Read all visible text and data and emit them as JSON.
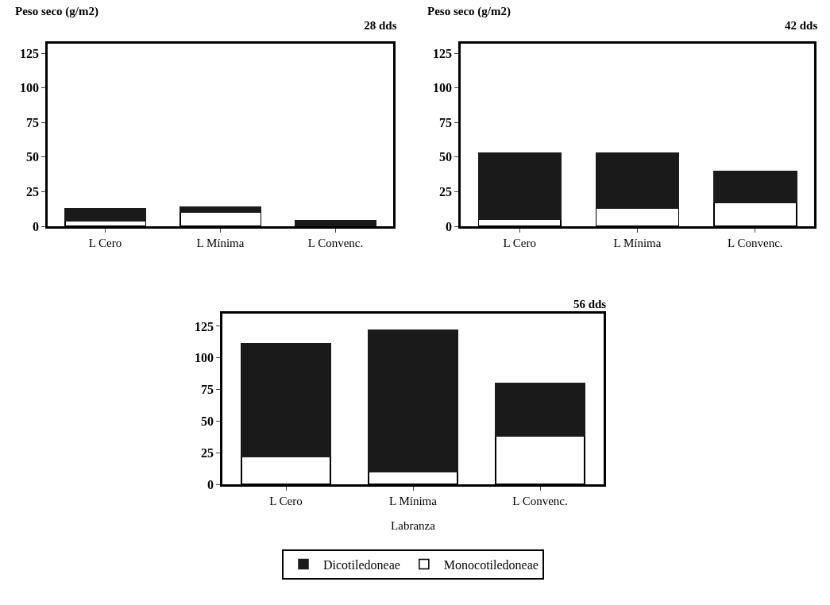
{
  "chart_data": [
    {
      "type": "bar",
      "title": "28 dds",
      "ylabel": "Peso seco (g/m2)",
      "stacked": true,
      "categories": [
        "L Cero",
        "L Mínima",
        "L Convenc."
      ],
      "ylim": [
        0,
        132
      ],
      "yticks": [
        0,
        25,
        50,
        75,
        100,
        125
      ],
      "series": [
        {
          "color": "#ffffff",
          "values": [
            4,
            10,
            null
          ]
        },
        {
          "color": "#1a1a1a",
          "values": [
            9,
            4,
            4
          ]
        }
      ]
    },
    {
      "type": "bar",
      "title": "42 dds",
      "ylabel": "Peso seco (g/m2)",
      "stacked": true,
      "categories": [
        "L Cero",
        "L Mínima",
        "L Convenc."
      ],
      "ylim": [
        0,
        132
      ],
      "yticks": [
        0,
        25,
        50,
        75,
        100,
        125
      ],
      "series": [
        {
          "color": "#ffffff",
          "values": [
            5,
            13,
            17
          ]
        },
        {
          "color": "#1a1a1a",
          "values": [
            48,
            40,
            23
          ]
        }
      ]
    },
    {
      "type": "bar",
      "title": "56 dds",
      "xlabel": "Labranza",
      "stacked": true,
      "categories": [
        "L Cero",
        "L Mínima",
        "L Convenc."
      ],
      "ylim": [
        0,
        135
      ],
      "yticks": [
        0,
        25,
        50,
        75,
        100,
        125
      ],
      "legend": "bottom",
      "series": [
        {
          "name": "Monocotiledoneae",
          "color": "#ffffff",
          "values": [
            22,
            10,
            38
          ]
        },
        {
          "name": "Dicotiledoneae",
          "color": "#1a1a1a",
          "values": [
            89,
            112,
            42
          ]
        }
      ]
    }
  ]
}
